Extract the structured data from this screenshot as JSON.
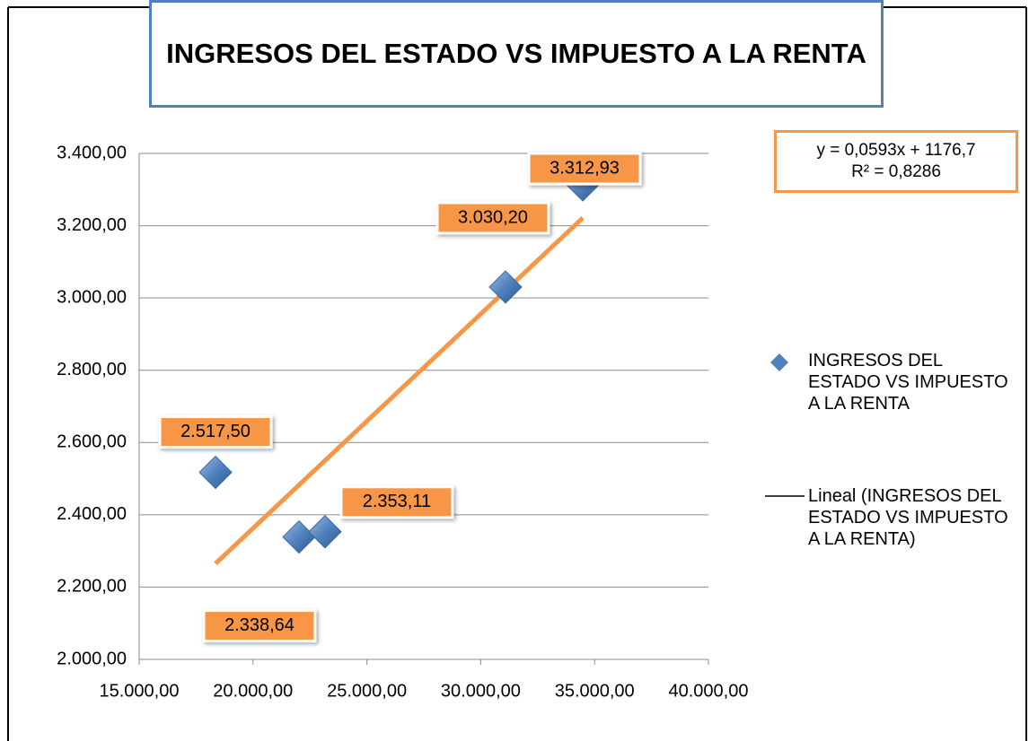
{
  "chart_data": {
    "type": "scatter",
    "title": "INGRESOS DEL ESTADO VS IMPUESTO A LA RENTA",
    "series": [
      {
        "name": "INGRESOS DEL ESTADO VS IMPUESTO A LA RENTA",
        "color": "#4f81bd",
        "x": [
          18352,
          22019,
          23160,
          31088,
          34480
        ],
        "values": [
          2517.5,
          2338.64,
          2353.11,
          3030.2,
          3312.93
        ],
        "value_labels": [
          "2.517,50",
          "2.338,64",
          "2.353,11",
          "3.030,20",
          "3.312,93"
        ]
      }
    ],
    "trendline": {
      "name": "Lineal (INGRESOS DEL ESTADO VS IMPUESTO A LA RENTA)",
      "color": "#f79646",
      "slope": 0.0593,
      "intercept": 1176.7,
      "equation": "y = 0,0593x + 1176,7",
      "r_squared": "R² = 0,8286"
    },
    "xlim": [
      15000,
      40000
    ],
    "xticks": [
      {
        "value": 15000,
        "label": "15.000,00"
      },
      {
        "value": 20000,
        "label": "20.000,00"
      },
      {
        "value": 25000,
        "label": "25.000,00"
      },
      {
        "value": 30000,
        "label": "30.000,00"
      },
      {
        "value": 35000,
        "label": "35.000,00"
      },
      {
        "value": 40000,
        "label": "40.000,00"
      }
    ],
    "ylim": [
      2000,
      3400
    ],
    "yticks": [
      {
        "value": 2000,
        "label": "2.000,00"
      },
      {
        "value": 2200,
        "label": "2.200,00"
      },
      {
        "value": 2400,
        "label": "2.400,00"
      },
      {
        "value": 2600,
        "label": "2.600,00"
      },
      {
        "value": 2800,
        "label": "2.800,00"
      },
      {
        "value": 3000,
        "label": "3.000,00"
      },
      {
        "value": 3200,
        "label": "3.200,00"
      },
      {
        "value": 3400,
        "label": "3.400,00"
      }
    ],
    "grid": true
  }
}
